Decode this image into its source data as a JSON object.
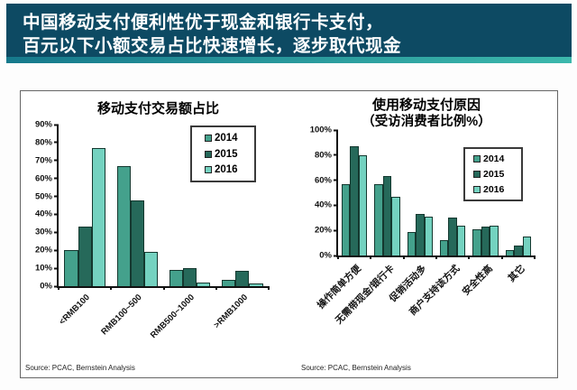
{
  "banner": {
    "line1": "中国移动支付便利性优于现金和银行卡支付，",
    "line2": "百元以下小额交易占比快速增长，逐步取代现金",
    "bg_color": "#0d4a63",
    "accent_color_start": "#16798c",
    "accent_color_end": "#3cb8ac",
    "text_color": "#ffffff"
  },
  "chart_data": [
    {
      "type": "bar",
      "title": "移动支付交易额占比",
      "categories": [
        "<RMB100",
        "RMB100~500",
        "RMB500~1000",
        ">RMB1000"
      ],
      "series": [
        {
          "name": "2014",
          "color": "#44a18c",
          "values": [
            20,
            67,
            9,
            3.5
          ]
        },
        {
          "name": "2015",
          "color": "#26695a",
          "values": [
            33,
            48,
            10,
            8.5
          ]
        },
        {
          "name": "2016",
          "color": "#74d2c0",
          "values": [
            77,
            19,
            2,
            1.5
          ]
        }
      ],
      "ylim": [
        0,
        90
      ],
      "ytick_step": 10,
      "ytick_suffix": "%",
      "grid": "off",
      "legend_position": "upper-right",
      "source": "Source: PCAC, Bernstein Analysis"
    },
    {
      "type": "bar",
      "title": "使用移动支付原因",
      "subtitle": "（受访消费者比例%）",
      "categories": [
        "操作简单方便",
        "无需带现金/银行卡",
        "促销活动多",
        "商户支持该方式",
        "安全性高",
        "其它"
      ],
      "series": [
        {
          "name": "2014",
          "color": "#44a18c",
          "values": [
            57,
            57,
            19,
            12,
            21,
            4
          ]
        },
        {
          "name": "2015",
          "color": "#26695a",
          "values": [
            87,
            63,
            33,
            30,
            23,
            8
          ]
        },
        {
          "name": "2016",
          "color": "#74d2c0",
          "values": [
            80,
            47,
            31,
            24,
            24,
            15
          ]
        }
      ],
      "ylim": [
        0,
        100
      ],
      "ytick_step": 20,
      "ytick_suffix": "%",
      "grid": "off",
      "legend_position": "upper-right",
      "source": "Source: PCAC, Bernstein Analysis"
    }
  ]
}
